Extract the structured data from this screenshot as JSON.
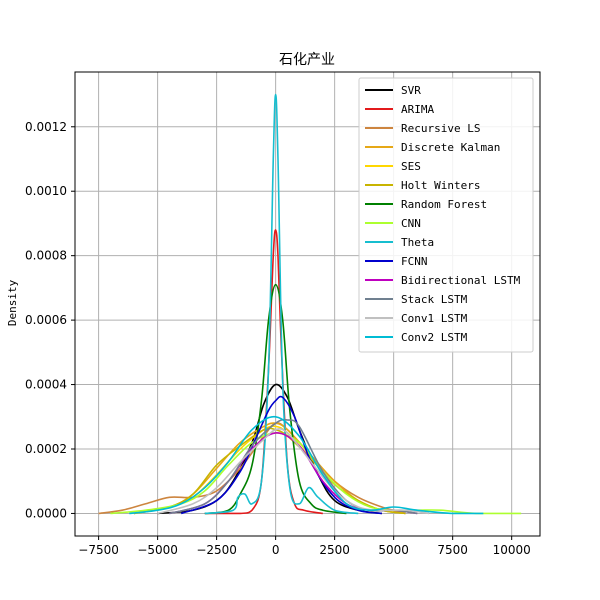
{
  "chart_data": {
    "type": "line",
    "title": "石化产业",
    "xlabel": "",
    "ylabel": "Density",
    "xlim": [
      -8500,
      11200
    ],
    "ylim": [
      -7e-05,
      0.00137
    ],
    "xticks": [
      -7500,
      -5000,
      -2500,
      0,
      2500,
      5000,
      7500,
      10000
    ],
    "xtick_labels": [
      "−7500",
      "−5000",
      "−2500",
      "0",
      "2500",
      "5000",
      "7500",
      "10000"
    ],
    "yticks": [
      0.0,
      0.0002,
      0.0004,
      0.0006,
      0.0008,
      0.001,
      0.0012
    ],
    "ytick_labels": [
      "0.0000",
      "0.0002",
      "0.0004",
      "0.0006",
      "0.0008",
      "0.0010",
      "0.0012"
    ],
    "grid": true,
    "legend_position": "top-right",
    "series": [
      {
        "name": "SVR",
        "color": "#000000",
        "x": [
          -5000,
          -3500,
          -2500,
          -1800,
          -1000,
          -500,
          0,
          500,
          1000,
          1800,
          2500,
          3500,
          4500
        ],
        "y": [
          0,
          1e-05,
          4e-05,
          0.0001,
          0.00022,
          0.00034,
          0.0004,
          0.00036,
          0.00026,
          0.00012,
          4e-05,
          1e-05,
          0
        ]
      },
      {
        "name": "ARIMA",
        "color": "#e31a1c",
        "x": [
          -3000,
          -1500,
          -1000,
          -600,
          -300,
          -100,
          0,
          100,
          250,
          500,
          800,
          1200,
          2000
        ],
        "y": [
          0,
          0,
          1e-05,
          0.0001,
          0.00045,
          0.0008,
          0.00088,
          0.0008,
          0.0005,
          0.00015,
          3e-05,
          1e-05,
          0
        ]
      },
      {
        "name": "Recursive LS",
        "color": "#cd853f",
        "x": [
          -7500,
          -6500,
          -5500,
          -4500,
          -3500,
          -2500,
          -1500,
          -500,
          0,
          500,
          1500,
          2500,
          3500,
          4500,
          5500
        ],
        "y": [
          0,
          1e-05,
          3e-05,
          5e-05,
          5e-05,
          7e-05,
          0.00014,
          0.00024,
          0.00028,
          0.00026,
          0.00018,
          0.0001,
          5e-05,
          2e-05,
          0
        ]
      },
      {
        "name": "Discrete Kalman",
        "color": "#e6a817",
        "x": [
          -6000,
          -4500,
          -3500,
          -2500,
          -1500,
          -500,
          0,
          500,
          1500,
          2500,
          3500,
          4500,
          5500
        ],
        "y": [
          0,
          2e-05,
          6e-05,
          0.00014,
          0.00022,
          0.00027,
          0.00028,
          0.00026,
          0.00018,
          0.0001,
          4e-05,
          1e-05,
          0
        ]
      },
      {
        "name": "SES",
        "color": "#ffd700",
        "x": [
          -6000,
          -4500,
          -3500,
          -2500,
          -1500,
          -500,
          0,
          500,
          1500,
          2500,
          3500,
          4500,
          5500
        ],
        "y": [
          0,
          2e-05,
          5e-05,
          0.00012,
          0.0002,
          0.00026,
          0.00027,
          0.00025,
          0.00017,
          9e-05,
          4e-05,
          1e-05,
          0
        ]
      },
      {
        "name": "Holt Winters",
        "color": "#c8b400",
        "x": [
          -6000,
          -4500,
          -3500,
          -2500,
          -1500,
          -500,
          0,
          500,
          1500,
          2500,
          3500,
          4500,
          5500
        ],
        "y": [
          0,
          2e-05,
          6e-05,
          0.00015,
          0.00021,
          0.00026,
          0.00026,
          0.00024,
          0.00017,
          9e-05,
          4e-05,
          1e-05,
          0
        ]
      },
      {
        "name": "Random Forest",
        "color": "#008000",
        "x": [
          -3000,
          -2000,
          -1500,
          -1000,
          -600,
          -300,
          0,
          300,
          600,
          1000,
          1500,
          2000,
          3000
        ],
        "y": [
          0,
          1e-05,
          6e-05,
          0.00015,
          0.00035,
          0.0006,
          0.00071,
          0.0006,
          0.00032,
          0.0001,
          3e-05,
          1e-05,
          0
        ]
      },
      {
        "name": "CNN",
        "color": "#adff2f",
        "x": [
          -7000,
          -5500,
          -4000,
          -3000,
          -2000,
          -1000,
          0,
          1000,
          2000,
          3000,
          4000,
          5000,
          6000,
          7000,
          8500,
          10400
        ],
        "y": [
          0,
          1e-05,
          3e-05,
          7e-05,
          0.00015,
          0.00022,
          0.00025,
          0.00022,
          0.00013,
          6e-05,
          2e-05,
          1e-05,
          1e-05,
          1e-05,
          0,
          0
        ]
      },
      {
        "name": "Theta",
        "color": "#17becf",
        "x": [
          -3000,
          -1800,
          -1600,
          -1300,
          -1000,
          -600,
          -300,
          -100,
          0,
          100,
          300,
          600,
          1000,
          1400,
          1800,
          2500,
          3500
        ],
        "y": [
          0,
          1e-05,
          5e-05,
          6e-05,
          3e-05,
          0.0001,
          0.00045,
          0.0011,
          0.0013,
          0.0011,
          0.0004,
          8e-05,
          3e-05,
          8e-05,
          5e-05,
          1e-05,
          0
        ]
      },
      {
        "name": "FCNN",
        "color": "#0000cd",
        "x": [
          -4000,
          -2500,
          -1500,
          -800,
          -300,
          0,
          300,
          800,
          1500,
          2500,
          3500,
          4500
        ],
        "y": [
          0,
          4e-05,
          0.00013,
          0.00024,
          0.00032,
          0.00035,
          0.00036,
          0.0003,
          0.00016,
          5e-05,
          1e-05,
          0
        ]
      },
      {
        "name": "Bidirectional LSTM",
        "color": "#bf00bf",
        "x": [
          -4500,
          -3000,
          -2000,
          -1000,
          0,
          1000,
          2000,
          3000,
          4000,
          5000,
          6000
        ],
        "y": [
          0,
          3e-05,
          0.0001,
          0.0002,
          0.00025,
          0.00021,
          0.0001,
          3e-05,
          1e-05,
          1e-05,
          0
        ]
      },
      {
        "name": "Stack LSTM",
        "color": "#708090",
        "x": [
          -4500,
          -3000,
          -2000,
          -1000,
          0,
          500,
          1000,
          2000,
          3000,
          4000,
          5000,
          6000
        ],
        "y": [
          0,
          3e-05,
          0.0001,
          0.00021,
          0.00028,
          0.00029,
          0.00027,
          0.00013,
          4e-05,
          1e-05,
          1e-05,
          0
        ]
      },
      {
        "name": "Conv1 LSTM",
        "color": "#c0c0c0",
        "x": [
          -5000,
          -3500,
          -2500,
          -1500,
          -500,
          0,
          500,
          1500,
          2500,
          3500,
          4500,
          5500,
          6500
        ],
        "y": [
          0,
          3e-05,
          8e-05,
          0.00016,
          0.00023,
          0.00026,
          0.00025,
          0.00016,
          7e-05,
          2e-05,
          1e-05,
          1e-05,
          0
        ]
      },
      {
        "name": "Conv2 LSTM",
        "color": "#00bcd4",
        "x": [
          -6200,
          -5000,
          -4000,
          -3000,
          -2000,
          -1000,
          0,
          1000,
          2000,
          3000,
          4000,
          5000,
          6000,
          7500,
          8800
        ],
        "y": [
          0,
          1e-05,
          3e-05,
          8e-05,
          0.00016,
          0.00026,
          0.0003,
          0.00024,
          0.00012,
          3e-05,
          1e-05,
          2e-05,
          1e-05,
          0,
          0
        ]
      }
    ]
  }
}
